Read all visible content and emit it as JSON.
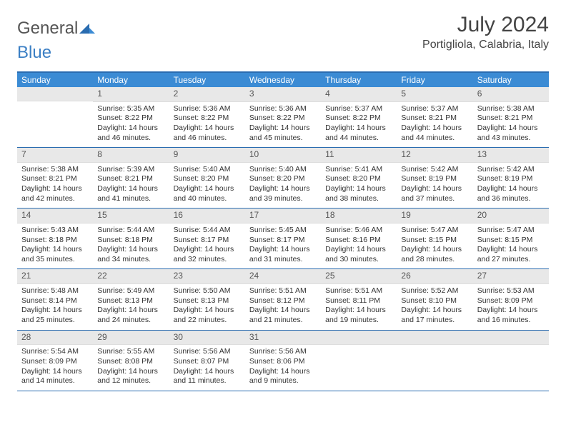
{
  "brand": {
    "part1": "General",
    "part2": "Blue"
  },
  "title": "July 2024",
  "location": "Portigliola, Calabria, Italy",
  "day_names": [
    "Sunday",
    "Monday",
    "Tuesday",
    "Wednesday",
    "Thursday",
    "Friday",
    "Saturday"
  ],
  "colors": {
    "header_bg": "#3b8bd4",
    "border": "#2a6cb0",
    "daynum_bg": "#e8e8e8"
  },
  "weeks": [
    [
      {
        "n": "",
        "sr": "",
        "ss": "",
        "dl": ""
      },
      {
        "n": "1",
        "sr": "Sunrise: 5:35 AM",
        "ss": "Sunset: 8:22 PM",
        "dl": "Daylight: 14 hours and 46 minutes."
      },
      {
        "n": "2",
        "sr": "Sunrise: 5:36 AM",
        "ss": "Sunset: 8:22 PM",
        "dl": "Daylight: 14 hours and 46 minutes."
      },
      {
        "n": "3",
        "sr": "Sunrise: 5:36 AM",
        "ss": "Sunset: 8:22 PM",
        "dl": "Daylight: 14 hours and 45 minutes."
      },
      {
        "n": "4",
        "sr": "Sunrise: 5:37 AM",
        "ss": "Sunset: 8:22 PM",
        "dl": "Daylight: 14 hours and 44 minutes."
      },
      {
        "n": "5",
        "sr": "Sunrise: 5:37 AM",
        "ss": "Sunset: 8:21 PM",
        "dl": "Daylight: 14 hours and 44 minutes."
      },
      {
        "n": "6",
        "sr": "Sunrise: 5:38 AM",
        "ss": "Sunset: 8:21 PM",
        "dl": "Daylight: 14 hours and 43 minutes."
      }
    ],
    [
      {
        "n": "7",
        "sr": "Sunrise: 5:38 AM",
        "ss": "Sunset: 8:21 PM",
        "dl": "Daylight: 14 hours and 42 minutes."
      },
      {
        "n": "8",
        "sr": "Sunrise: 5:39 AM",
        "ss": "Sunset: 8:21 PM",
        "dl": "Daylight: 14 hours and 41 minutes."
      },
      {
        "n": "9",
        "sr": "Sunrise: 5:40 AM",
        "ss": "Sunset: 8:20 PM",
        "dl": "Daylight: 14 hours and 40 minutes."
      },
      {
        "n": "10",
        "sr": "Sunrise: 5:40 AM",
        "ss": "Sunset: 8:20 PM",
        "dl": "Daylight: 14 hours and 39 minutes."
      },
      {
        "n": "11",
        "sr": "Sunrise: 5:41 AM",
        "ss": "Sunset: 8:20 PM",
        "dl": "Daylight: 14 hours and 38 minutes."
      },
      {
        "n": "12",
        "sr": "Sunrise: 5:42 AM",
        "ss": "Sunset: 8:19 PM",
        "dl": "Daylight: 14 hours and 37 minutes."
      },
      {
        "n": "13",
        "sr": "Sunrise: 5:42 AM",
        "ss": "Sunset: 8:19 PM",
        "dl": "Daylight: 14 hours and 36 minutes."
      }
    ],
    [
      {
        "n": "14",
        "sr": "Sunrise: 5:43 AM",
        "ss": "Sunset: 8:18 PM",
        "dl": "Daylight: 14 hours and 35 minutes."
      },
      {
        "n": "15",
        "sr": "Sunrise: 5:44 AM",
        "ss": "Sunset: 8:18 PM",
        "dl": "Daylight: 14 hours and 34 minutes."
      },
      {
        "n": "16",
        "sr": "Sunrise: 5:44 AM",
        "ss": "Sunset: 8:17 PM",
        "dl": "Daylight: 14 hours and 32 minutes."
      },
      {
        "n": "17",
        "sr": "Sunrise: 5:45 AM",
        "ss": "Sunset: 8:17 PM",
        "dl": "Daylight: 14 hours and 31 minutes."
      },
      {
        "n": "18",
        "sr": "Sunrise: 5:46 AM",
        "ss": "Sunset: 8:16 PM",
        "dl": "Daylight: 14 hours and 30 minutes."
      },
      {
        "n": "19",
        "sr": "Sunrise: 5:47 AM",
        "ss": "Sunset: 8:15 PM",
        "dl": "Daylight: 14 hours and 28 minutes."
      },
      {
        "n": "20",
        "sr": "Sunrise: 5:47 AM",
        "ss": "Sunset: 8:15 PM",
        "dl": "Daylight: 14 hours and 27 minutes."
      }
    ],
    [
      {
        "n": "21",
        "sr": "Sunrise: 5:48 AM",
        "ss": "Sunset: 8:14 PM",
        "dl": "Daylight: 14 hours and 25 minutes."
      },
      {
        "n": "22",
        "sr": "Sunrise: 5:49 AM",
        "ss": "Sunset: 8:13 PM",
        "dl": "Daylight: 14 hours and 24 minutes."
      },
      {
        "n": "23",
        "sr": "Sunrise: 5:50 AM",
        "ss": "Sunset: 8:13 PM",
        "dl": "Daylight: 14 hours and 22 minutes."
      },
      {
        "n": "24",
        "sr": "Sunrise: 5:51 AM",
        "ss": "Sunset: 8:12 PM",
        "dl": "Daylight: 14 hours and 21 minutes."
      },
      {
        "n": "25",
        "sr": "Sunrise: 5:51 AM",
        "ss": "Sunset: 8:11 PM",
        "dl": "Daylight: 14 hours and 19 minutes."
      },
      {
        "n": "26",
        "sr": "Sunrise: 5:52 AM",
        "ss": "Sunset: 8:10 PM",
        "dl": "Daylight: 14 hours and 17 minutes."
      },
      {
        "n": "27",
        "sr": "Sunrise: 5:53 AM",
        "ss": "Sunset: 8:09 PM",
        "dl": "Daylight: 14 hours and 16 minutes."
      }
    ],
    [
      {
        "n": "28",
        "sr": "Sunrise: 5:54 AM",
        "ss": "Sunset: 8:09 PM",
        "dl": "Daylight: 14 hours and 14 minutes."
      },
      {
        "n": "29",
        "sr": "Sunrise: 5:55 AM",
        "ss": "Sunset: 8:08 PM",
        "dl": "Daylight: 14 hours and 12 minutes."
      },
      {
        "n": "30",
        "sr": "Sunrise: 5:56 AM",
        "ss": "Sunset: 8:07 PM",
        "dl": "Daylight: 14 hours and 11 minutes."
      },
      {
        "n": "31",
        "sr": "Sunrise: 5:56 AM",
        "ss": "Sunset: 8:06 PM",
        "dl": "Daylight: 14 hours and 9 minutes."
      },
      {
        "n": "",
        "sr": "",
        "ss": "",
        "dl": ""
      },
      {
        "n": "",
        "sr": "",
        "ss": "",
        "dl": ""
      },
      {
        "n": "",
        "sr": "",
        "ss": "",
        "dl": ""
      }
    ]
  ]
}
